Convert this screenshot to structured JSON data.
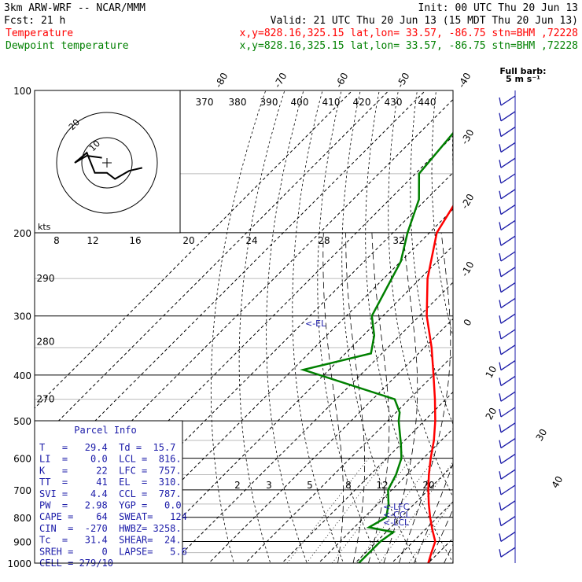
{
  "header": {
    "model": "3km ARW-WRF -- NCAR/MMM",
    "init": "Init: 00 UTC Thu 20 Jun 13",
    "fcst": "Fcst:    21 h",
    "valid": "Valid: 21 UTC Thu 20 Jun 13 (15 MDT Thu 20 Jun 13)",
    "temp_label": "Temperature",
    "temp_info": "x,y=828.16,325.15   lat,lon= 33.57, -86.75   stn=BHM ,72228",
    "dew_label": "Dewpoint temperature",
    "dew_info": "x,y=828.16,325.15   lat,lon= 33.57, -86.75   stn=BHM ,72228"
  },
  "barb_legend": {
    "line1": "Full barb:",
    "line2": "5 m s⁻¹"
  },
  "hodograph": {
    "kts_label": "kts",
    "ring_labels": [
      "20",
      "10"
    ]
  },
  "parcel_info": {
    "title": "Parcel Info",
    "rows": [
      "T   =   29.4  Td =  15.7",
      "LI  =    0.0  LCL =  816.",
      "K   =     22  LFC =  757.",
      "TT  =     41  EL  =  310.",
      "SVI =    4.4  CCL =  787.",
      "PW  =   2.98  YGP =   0.0",
      "CAPE =    64  SWEAT=   124",
      "CIN  =  -270  HWBZ= 3258.",
      "Tc  =   31.4  SHEAR=  24.",
      "SREH =     0  LAPSE=   5.6",
      "CELL = 279/10"
    ]
  },
  "annotations": {
    "el": "<-EL",
    "lfc": "<-LFC",
    "ccl": "<-CCL",
    "lcl": "<-LCL"
  },
  "chart_data": {
    "type": "skew-t log-p",
    "pressure_levels": [
      "100",
      "200",
      "300",
      "400",
      "500",
      "600",
      "700",
      "800",
      "900",
      "1000"
    ],
    "isotherm_labels_top": [
      "-80",
      "-70",
      "-60",
      "-50",
      "-40"
    ],
    "isotherm_labels_right": [
      "-30",
      "-20",
      "-10",
      "0",
      "10",
      "20",
      "30",
      "40"
    ],
    "theta_labels": [
      "370",
      "380",
      "390",
      "400",
      "410",
      "420",
      "430",
      "440"
    ],
    "theta_e_labels": [
      "8",
      "12",
      "16",
      "20",
      "24",
      "28",
      "32"
    ],
    "mixing_ratio_labels": [
      "2",
      "3",
      "5",
      "8",
      "12",
      "20"
    ],
    "left_labels": [
      {
        "p": 250,
        "text": "290"
      },
      {
        "p": 340,
        "text": "280"
      },
      {
        "p": 450,
        "text": "270"
      }
    ],
    "series": [
      {
        "name": "Temperature",
        "color": "#ff0000",
        "profile": [
          [
            100,
            -67
          ],
          [
            120,
            -64
          ],
          [
            150,
            -62
          ],
          [
            170,
            -61.5
          ],
          [
            200,
            -58
          ],
          [
            250,
            -48
          ],
          [
            300,
            -38
          ],
          [
            350,
            -28
          ],
          [
            400,
            -20
          ],
          [
            450,
            -13
          ],
          [
            500,
            -7
          ],
          [
            550,
            -2
          ],
          [
            600,
            2
          ],
          [
            650,
            6
          ],
          [
            700,
            10
          ],
          [
            750,
            14
          ],
          [
            800,
            18
          ],
          [
            850,
            22
          ],
          [
            900,
            26
          ],
          [
            950,
            28
          ],
          [
            1000,
            30
          ]
        ]
      },
      {
        "name": "Dewpoint temperature",
        "color": "#008000",
        "profile": [
          [
            100,
            -82
          ],
          [
            120,
            -81
          ],
          [
            150,
            -79
          ],
          [
            170,
            -72
          ],
          [
            200,
            -66
          ],
          [
            230,
            -60
          ],
          [
            300,
            -53
          ],
          [
            330,
            -47
          ],
          [
            360,
            -43
          ],
          [
            390,
            -57
          ],
          [
            450,
            -24
          ],
          [
            480,
            -19
          ],
          [
            500,
            -17
          ],
          [
            560,
            -10
          ],
          [
            600,
            -6
          ],
          [
            650,
            -3
          ],
          [
            700,
            -1
          ],
          [
            750,
            3
          ],
          [
            800,
            6
          ],
          [
            840,
            4
          ],
          [
            860,
            12
          ],
          [
            900,
            11
          ],
          [
            950,
            11
          ],
          [
            1000,
            11
          ]
        ]
      }
    ],
    "hodograph": [
      [
        0.35,
        -0.05
      ],
      [
        0.22,
        -0.08
      ],
      [
        0.08,
        -0.16
      ],
      [
        0.0,
        -0.1
      ],
      [
        -0.12,
        -0.1
      ],
      [
        -0.2,
        0.1
      ],
      [
        -0.32,
        0.0
      ],
      [
        -0.2,
        0.07
      ],
      [
        -0.05,
        0.05
      ]
    ]
  },
  "colors": {
    "temperature": "#ff0000",
    "dewpoint": "#008000",
    "info_text": "#1a1aa8",
    "grid": "#000000"
  }
}
